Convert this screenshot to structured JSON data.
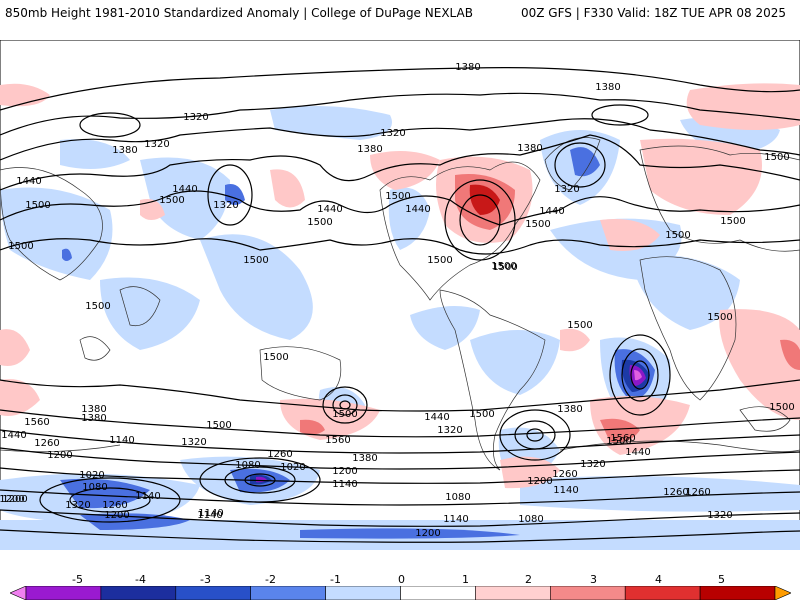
{
  "header": {
    "left_title": "850mb Height 1981-2010 Standardized Anomaly | College of DuPage NEXLAB",
    "right_title": "00Z GFS | F330 Valid: 18Z TUE APR 08 2025"
  },
  "map": {
    "projection": "global equirectangular",
    "contour_labels": [
      "1380",
      "1380",
      "1320",
      "1380",
      "1320",
      "1440",
      "1500",
      "1320",
      "1440",
      "1500",
      "1500",
      "1380",
      "1320",
      "1440",
      "1500",
      "1440",
      "1500",
      "1380",
      "1320",
      "1440",
      "1500",
      "1500",
      "1500",
      "1500",
      "1500",
      "1500",
      "1500",
      "1500",
      "1500",
      "1500",
      "1500",
      "1560",
      "1500",
      "1500",
      "1560",
      "1560",
      "1500",
      "1440",
      "1380",
      "1320",
      "1260",
      "1200",
      "1380",
      "1440",
      "1320",
      "1140",
      "1260",
      "1200",
      "1380",
      "1140",
      "1020",
      "1080",
      "1020",
      "1080",
      "1260",
      "1200",
      "1140",
      "1080",
      "1140",
      "1080",
      "1140",
      "1260",
      "1320",
      "1200",
      "1320",
      "1140",
      "1200",
      "1440",
      "1500",
      "1380",
      "1320",
      "1260",
      "1200",
      "1140",
      "1500",
      "1500",
      "1260",
      "1200"
    ],
    "colors": {
      "neg5": "#e060e0",
      "neg4": "#8a18c8",
      "neg3": "#1c3aa6",
      "neg2": "#4a70e0",
      "neg1": "#c4dcff",
      "pos1": "#ffc8c8",
      "pos2": "#f07878",
      "pos3": "#c81818",
      "pos4": "#a00000",
      "pos5": "#ffa400"
    }
  },
  "colorbar": {
    "ticks": [
      "-5",
      "-4",
      "-3",
      "-2",
      "-1",
      "0",
      "1",
      "2",
      "3",
      "4",
      "5"
    ],
    "colors": [
      "#f080f0",
      "#9a1ad0",
      "#1c2e9e",
      "#2850c8",
      "#5a84ec",
      "#c4dcff",
      "#ffffff",
      "#ffd0d0",
      "#f48a8a",
      "#e03030",
      "#b80000",
      "#ff9c00"
    ]
  }
}
